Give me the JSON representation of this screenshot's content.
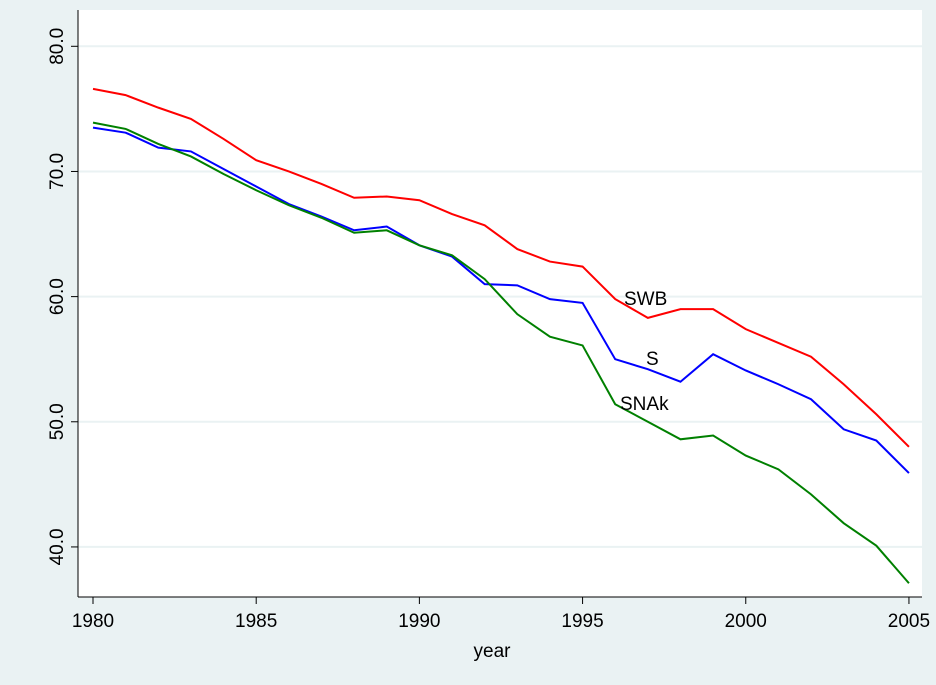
{
  "chart_data": {
    "type": "line",
    "x_label": "year",
    "x": [
      1980,
      1981,
      1982,
      1983,
      1984,
      1985,
      1986,
      1987,
      1988,
      1989,
      1990,
      1991,
      1992,
      1993,
      1994,
      1995,
      1996,
      1997,
      1998,
      1999,
      2000,
      2001,
      2002,
      2003,
      2004,
      2005
    ],
    "series": [
      {
        "name": "SWB",
        "color": "#ff0000",
        "values": [
          76.6,
          76.1,
          75.1,
          74.2,
          72.6,
          70.9,
          70.0,
          69.0,
          67.9,
          68.0,
          67.7,
          66.6,
          65.7,
          63.8,
          62.8,
          62.4,
          59.8,
          58.3,
          59.0,
          59.0,
          57.4,
          56.3,
          55.2,
          53.0,
          50.6,
          48.0
        ]
      },
      {
        "name": "S",
        "color": "#0000ff",
        "values": [
          73.5,
          73.1,
          71.9,
          71.6,
          70.2,
          68.8,
          67.4,
          66.4,
          65.3,
          65.6,
          64.1,
          63.2,
          61.0,
          60.9,
          59.8,
          59.5,
          55.0,
          54.2,
          53.2,
          55.4,
          54.1,
          53.0,
          51.8,
          49.4,
          48.5,
          45.9
        ]
      },
      {
        "name": "SNAk",
        "color": "#008000",
        "values": [
          73.9,
          73.4,
          72.2,
          71.2,
          69.8,
          68.5,
          67.3,
          66.3,
          65.1,
          65.3,
          64.1,
          63.3,
          61.4,
          58.6,
          56.8,
          56.1,
          51.4,
          50.0,
          48.6,
          48.9,
          47.3,
          46.2,
          44.2,
          41.9,
          40.1,
          37.1
        ]
      }
    ],
    "xlim": [
      1979.54,
      2005.4
    ],
    "ylim": [
      36,
      82.9
    ],
    "xticks": [
      1980,
      1985,
      1990,
      1995,
      2000,
      2005
    ],
    "yticks": [
      {
        "value": 40,
        "label": "40.0"
      },
      {
        "value": 50,
        "label": "50.0"
      },
      {
        "value": 60,
        "label": "60.0"
      },
      {
        "value": 70,
        "label": "70.0"
      },
      {
        "value": 80,
        "label": "80.0"
      }
    ],
    "grid": true
  }
}
